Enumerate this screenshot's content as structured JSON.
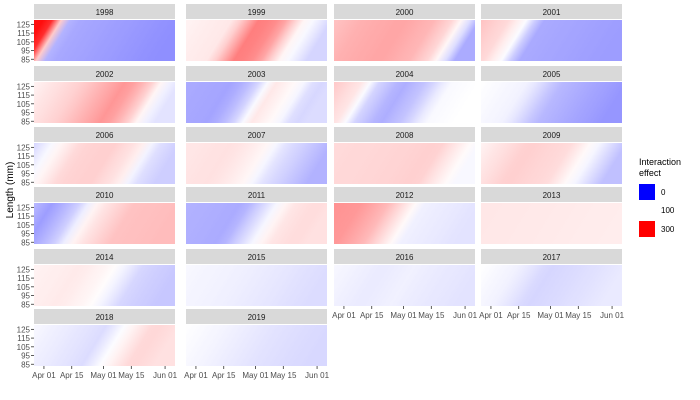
{
  "chart_data": {
    "type": "heatmap",
    "ylabel": "Length (mm)",
    "xlabel": "",
    "y_ticks": [
      "125",
      "115",
      "105",
      "95",
      "85"
    ],
    "y_tick_values": [
      125,
      115,
      105,
      95,
      85
    ],
    "ylim": [
      83,
      130
    ],
    "x_ticks": [
      "Apr 01",
      "Apr 15",
      "May 01",
      "May 15",
      "Jun 01"
    ],
    "x_tick_doy": [
      91,
      105,
      121,
      135,
      152
    ],
    "xlim_doy": [
      86,
      157
    ],
    "legend": {
      "title_lines": [
        "Interaction",
        "effect"
      ],
      "entries": [
        {
          "label": "0",
          "color": "#0000ff"
        },
        {
          "label": "100",
          "color": "#ffffff"
        },
        {
          "label": "300",
          "color": "#ff0000"
        }
      ],
      "position": "right"
    },
    "facets": [
      {
        "year": "1998",
        "profile": [
          [
            86,
            340
          ],
          [
            94,
            300
          ],
          [
            99,
            150
          ],
          [
            104,
            40
          ],
          [
            157,
            20
          ]
        ],
        "slope": 3
      },
      {
        "year": "1999",
        "profile": [
          [
            86,
            110
          ],
          [
            110,
            120
          ],
          [
            122,
            210
          ],
          [
            133,
            190
          ],
          [
            143,
            110
          ],
          [
            157,
            70
          ]
        ],
        "slope": 3
      },
      {
        "year": "2000",
        "profile": [
          [
            86,
            150
          ],
          [
            100,
            165
          ],
          [
            120,
            175
          ],
          [
            135,
            160
          ],
          [
            145,
            130
          ],
          [
            152,
            80
          ],
          [
            157,
            40
          ]
        ],
        "slope": 3
      },
      {
        "year": "2001",
        "profile": [
          [
            86,
            150
          ],
          [
            100,
            130
          ],
          [
            110,
            90
          ],
          [
            115,
            40
          ],
          [
            157,
            30
          ]
        ],
        "slope": 3
      },
      {
        "year": "2002",
        "profile": [
          [
            86,
            110
          ],
          [
            110,
            140
          ],
          [
            132,
            190
          ],
          [
            142,
            150
          ],
          [
            150,
            95
          ],
          [
            157,
            80
          ]
        ],
        "slope": 3
      },
      {
        "year": "2003",
        "profile": [
          [
            86,
            40
          ],
          [
            110,
            35
          ],
          [
            120,
            60
          ],
          [
            130,
            120
          ],
          [
            142,
            100
          ],
          [
            150,
            70
          ],
          [
            157,
            75
          ]
        ],
        "slope": 3
      },
      {
        "year": "2004",
        "profile": [
          [
            86,
            145
          ],
          [
            100,
            120
          ],
          [
            108,
            70
          ],
          [
            120,
            40
          ],
          [
            132,
            60
          ],
          [
            142,
            95
          ],
          [
            157,
            100
          ]
        ],
        "slope": 3
      },
      {
        "year": "2005",
        "profile": [
          [
            86,
            100
          ],
          [
            110,
            90
          ],
          [
            125,
            50
          ],
          [
            157,
            25
          ]
        ],
        "slope": 3
      },
      {
        "year": "2006",
        "profile": [
          [
            86,
            70
          ],
          [
            100,
            110
          ],
          [
            110,
            135
          ],
          [
            125,
            140
          ],
          [
            138,
            120
          ],
          [
            146,
            80
          ],
          [
            157,
            65
          ]
        ],
        "slope": 3
      },
      {
        "year": "2007",
        "profile": [
          [
            86,
            120
          ],
          [
            110,
            125
          ],
          [
            125,
            110
          ],
          [
            135,
            80
          ],
          [
            157,
            45
          ]
        ],
        "slope": 3
      },
      {
        "year": "2008",
        "profile": [
          [
            86,
            130
          ],
          [
            120,
            135
          ],
          [
            138,
            140
          ],
          [
            150,
            110
          ],
          [
            157,
            95
          ]
        ],
        "slope": 3
      },
      {
        "year": "2009",
        "profile": [
          [
            86,
            110
          ],
          [
            110,
            140
          ],
          [
            130,
            130
          ],
          [
            145,
            90
          ],
          [
            157,
            55
          ]
        ],
        "slope": 3
      },
      {
        "year": "2010",
        "profile": [
          [
            86,
            50
          ],
          [
            95,
            30
          ],
          [
            107,
            60
          ],
          [
            118,
            115
          ],
          [
            135,
            150
          ],
          [
            157,
            155
          ]
        ],
        "slope": 3
      },
      {
        "year": "2011",
        "profile": [
          [
            86,
            45
          ],
          [
            115,
            40
          ],
          [
            125,
            75
          ],
          [
            138,
            120
          ],
          [
            150,
            130
          ],
          [
            157,
            125
          ]
        ],
        "slope": 3
      },
      {
        "year": "2012",
        "profile": [
          [
            86,
            190
          ],
          [
            100,
            185
          ],
          [
            112,
            160
          ],
          [
            122,
            120
          ],
          [
            130,
            90
          ],
          [
            157,
            80
          ]
        ],
        "slope": 3
      },
      {
        "year": "2013",
        "profile": [
          [
            86,
            120
          ],
          [
            120,
            118
          ],
          [
            157,
            115
          ]
        ],
        "slope": 3
      },
      {
        "year": "2014",
        "profile": [
          [
            86,
            110
          ],
          [
            110,
            118
          ],
          [
            125,
            105
          ],
          [
            140,
            70
          ],
          [
            157,
            60
          ]
        ],
        "slope": 3
      },
      {
        "year": "2015",
        "profile": [
          [
            86,
            95
          ],
          [
            120,
            88
          ],
          [
            157,
            75
          ]
        ],
        "slope": 3
      },
      {
        "year": "2016",
        "profile": [
          [
            86,
            95
          ],
          [
            110,
            85
          ],
          [
            125,
            90
          ],
          [
            140,
            85
          ],
          [
            157,
            80
          ]
        ],
        "slope": 3
      },
      {
        "year": "2017",
        "profile": [
          [
            86,
            100
          ],
          [
            105,
            90
          ],
          [
            120,
            70
          ],
          [
            135,
            75
          ],
          [
            157,
            85
          ]
        ],
        "slope": 3
      },
      {
        "year": "2018",
        "profile": [
          [
            86,
            95
          ],
          [
            105,
            85
          ],
          [
            122,
            75
          ],
          [
            135,
            110
          ],
          [
            145,
            135
          ],
          [
            157,
            125
          ]
        ],
        "slope": 3
      },
      {
        "year": "2019",
        "profile": [
          [
            86,
            100
          ],
          [
            110,
            90
          ],
          [
            130,
            80
          ],
          [
            157,
            72
          ]
        ],
        "slope": 3
      }
    ]
  }
}
